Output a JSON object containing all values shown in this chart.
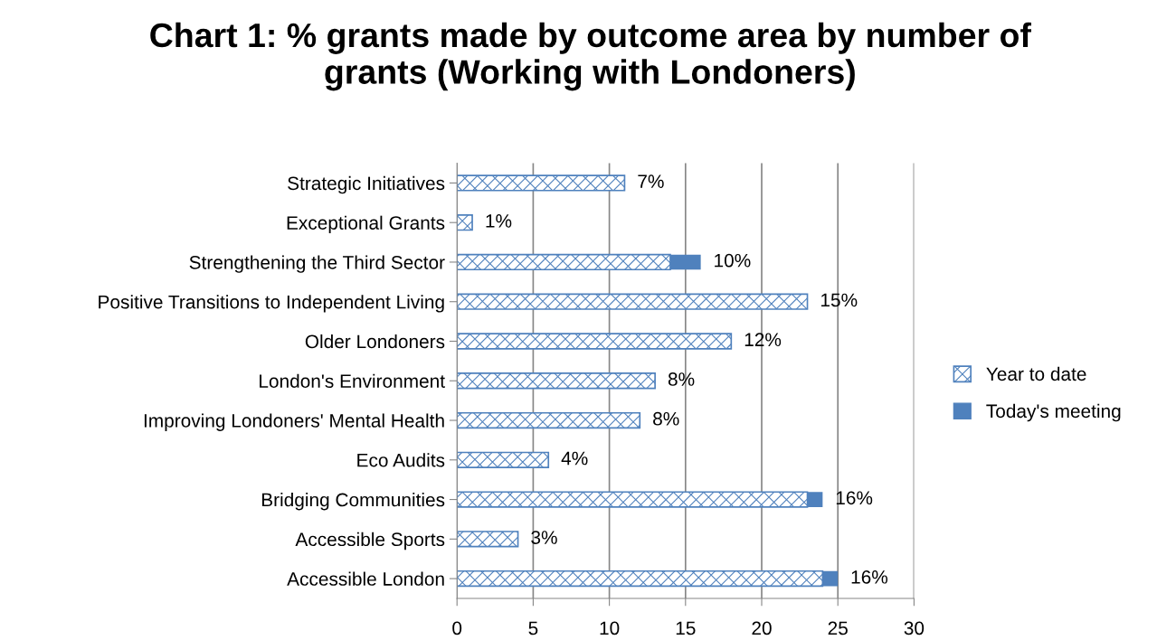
{
  "chart_data": {
    "type": "bar",
    "orientation": "horizontal",
    "stacked": true,
    "title": "Chart 1: % grants made by outcome area by number of grants (Working with Londoners)",
    "categories": [
      "Strategic Initiatives",
      "Exceptional Grants",
      "Strengthening the Third Sector",
      "Positive Transitions to Independent Living",
      "Older Londoners",
      "London's Environment",
      "Improving Londoners' Mental Health",
      "Eco Audits",
      "Bridging Communities",
      "Accessible Sports",
      "Accessible London"
    ],
    "series": [
      {
        "name": "Year to date",
        "color": "#4f81bd",
        "values": [
          11,
          1,
          14,
          23,
          18,
          13,
          12,
          6,
          23,
          4,
          24
        ]
      },
      {
        "name": "Today's meeting",
        "color": "#4f81bd",
        "values": [
          null,
          null,
          2,
          null,
          null,
          null,
          null,
          null,
          1,
          null,
          1
        ]
      }
    ],
    "annotations": [
      {
        "text": "7%",
        "x": 11,
        "y": "Strategic Initiatives"
      },
      {
        "text": "1%",
        "x": 1,
        "y": "Exceptional Grants"
      },
      {
        "text": "10%",
        "x": 16,
        "y": "Strengthening the Third Sector"
      },
      {
        "text": "15%",
        "x": 23,
        "y": "Positive Transitions to Independent Living"
      },
      {
        "text": "12%",
        "x": 18,
        "y": "Older Londoners"
      },
      {
        "text": "8%",
        "x": 13,
        "y": "London's Environment"
      },
      {
        "text": "8%",
        "x": 12,
        "y": "Improving Londoners' Mental Health"
      },
      {
        "text": "4%",
        "x": 6,
        "y": "Eco Audits"
      },
      {
        "text": "16%",
        "x": 24,
        "y": "Bridging Communities"
      },
      {
        "text": "3%",
        "x": 4,
        "y": "Accessible Sports"
      },
      {
        "text": "16%",
        "x": 25,
        "y": "Accessible London"
      }
    ],
    "xlim": [
      0,
      30
    ],
    "xticks": [
      0,
      5,
      10,
      15,
      20,
      25,
      30
    ],
    "grid": "x",
    "legend": "right"
  }
}
